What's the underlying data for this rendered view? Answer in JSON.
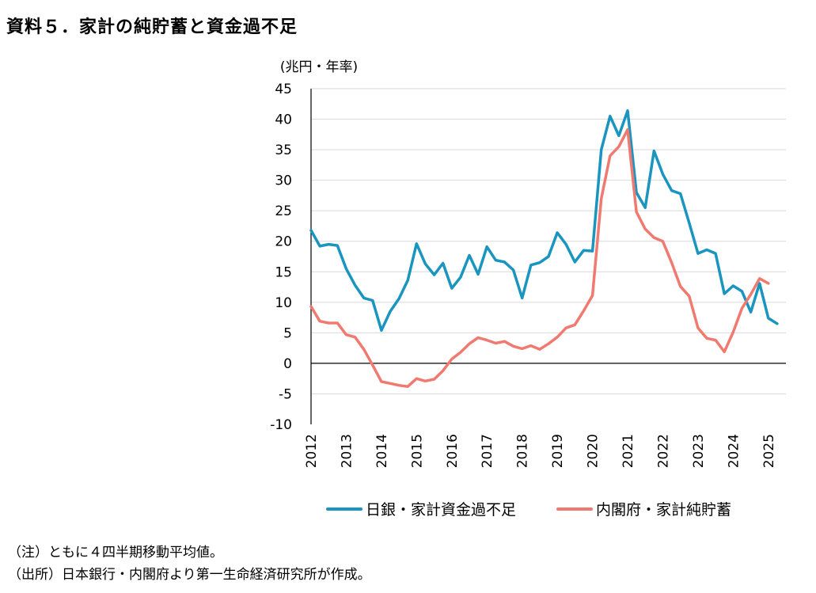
{
  "page_title": "資料５．家計の純貯蓄と資金過不足",
  "notes": [
    "（注）ともに４四半期移動平均値。",
    "（出所）日本銀行・内閣府より第一生命経済研究所が作成。"
  ],
  "chart_data": {
    "type": "line",
    "ylabel": "(兆円・年率)",
    "ylim": [
      -10,
      45
    ],
    "yticks": [
      45,
      40,
      35,
      30,
      25,
      20,
      15,
      10,
      5,
      0,
      -5,
      -10
    ],
    "xlim": [
      2012.0,
      2025.5
    ],
    "xtick_years": [
      2012,
      2013,
      2014,
      2015,
      2016,
      2017,
      2018,
      2019,
      2020,
      2021,
      2022,
      2023,
      2024,
      2025
    ],
    "grid": true,
    "legend_position": "bottom",
    "series": [
      {
        "name": "日銀・家計資金過不足",
        "color": "#1a95c0",
        "x": [
          2012.0,
          2012.25,
          2012.5,
          2012.75,
          2013.0,
          2013.25,
          2013.5,
          2013.75,
          2014.0,
          2014.25,
          2014.5,
          2014.75,
          2015.0,
          2015.25,
          2015.5,
          2015.75,
          2016.0,
          2016.25,
          2016.5,
          2016.75,
          2017.0,
          2017.25,
          2017.5,
          2017.75,
          2018.0,
          2018.25,
          2018.5,
          2018.75,
          2019.0,
          2019.25,
          2019.5,
          2019.75,
          2020.0,
          2020.25,
          2020.5,
          2020.75,
          2021.0,
          2021.25,
          2021.5,
          2021.75,
          2022.0,
          2022.25,
          2022.5,
          2022.75,
          2023.0,
          2023.25,
          2023.5,
          2023.75,
          2024.0,
          2024.25,
          2024.5,
          2024.75,
          2025.0,
          2025.25
        ],
        "values": [
          21.8,
          19.2,
          19.5,
          19.3,
          15.5,
          12.8,
          10.7,
          10.3,
          5.4,
          8.5,
          10.6,
          13.6,
          19.6,
          16.3,
          14.5,
          16.4,
          12.3,
          14.1,
          17.7,
          14.6,
          19.1,
          16.9,
          16.6,
          15.3,
          10.7,
          16.1,
          16.5,
          17.5,
          21.4,
          19.5,
          16.6,
          18.5,
          18.4,
          35.0,
          40.5,
          37.3,
          41.4,
          28.0,
          25.5,
          34.8,
          31.0,
          28.3,
          27.8,
          23.0,
          18.0,
          18.6,
          18.0,
          11.4,
          12.7,
          11.8,
          8.4,
          13.1,
          7.4,
          6.5
        ]
      },
      {
        "name": "内閣府・家計純貯蓄",
        "color": "#f07a70",
        "x": [
          2012.0,
          2012.25,
          2012.5,
          2012.75,
          2013.0,
          2013.25,
          2013.5,
          2013.75,
          2014.0,
          2014.25,
          2014.5,
          2014.75,
          2015.0,
          2015.25,
          2015.5,
          2015.75,
          2016.0,
          2016.25,
          2016.5,
          2016.75,
          2017.0,
          2017.25,
          2017.5,
          2017.75,
          2018.0,
          2018.25,
          2018.5,
          2018.75,
          2019.0,
          2019.25,
          2019.5,
          2019.75,
          2020.0,
          2020.25,
          2020.5,
          2020.75,
          2021.0,
          2021.25,
          2021.5,
          2021.75,
          2022.0,
          2022.25,
          2022.5,
          2022.75,
          2023.0,
          2023.25,
          2023.5,
          2023.75,
          2024.0,
          2024.25,
          2024.5,
          2024.75,
          2025.0
        ],
        "values": [
          9.3,
          6.9,
          6.6,
          6.6,
          4.7,
          4.3,
          2.3,
          -0.3,
          -3.0,
          -3.3,
          -3.6,
          -3.8,
          -2.5,
          -2.9,
          -2.6,
          -1.2,
          0.7,
          1.8,
          3.2,
          4.2,
          3.8,
          3.3,
          3.6,
          2.8,
          2.4,
          2.9,
          2.3,
          3.2,
          4.3,
          5.8,
          6.3,
          8.6,
          11.1,
          27.0,
          34.0,
          35.5,
          38.3,
          24.8,
          22.0,
          20.6,
          20.0,
          16.5,
          12.6,
          11.0,
          5.8,
          4.1,
          3.8,
          1.9,
          5.1,
          9.0,
          11.3,
          13.9,
          13.1
        ]
      }
    ]
  }
}
